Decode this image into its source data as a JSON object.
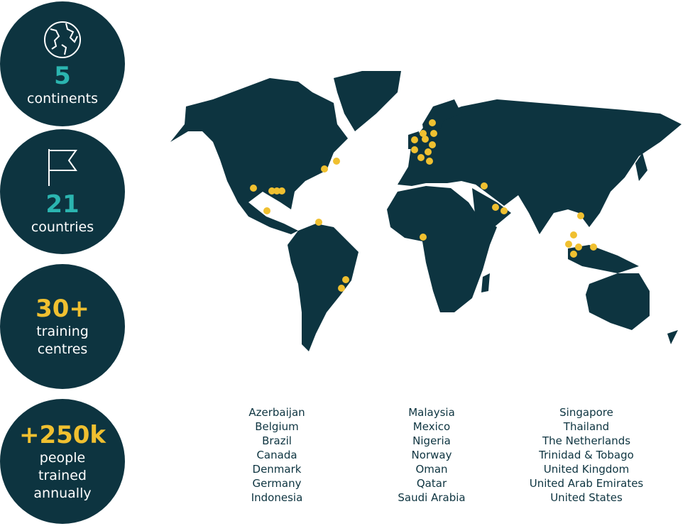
{
  "stats": [
    {
      "value": "5",
      "label": [
        "continents"
      ]
    },
    {
      "value": "21",
      "label": [
        "countries"
      ]
    },
    {
      "value": "30+",
      "label": [
        "training",
        "centres"
      ]
    },
    {
      "value": "+250k",
      "label": [
        "people",
        "trained",
        "annually"
      ]
    }
  ],
  "countries": [
    [
      "Azerbaijan",
      "Belgium",
      "Brazil",
      "Canada",
      "Denmark",
      "Germany",
      "Indonesia"
    ],
    [
      "Malaysia",
      "Mexico",
      "Nigeria",
      "Norway",
      "Oman",
      "Qatar",
      "Saudi Arabia"
    ],
    [
      "Singapore",
      "Thailand",
      "The Netherlands",
      "Trinidad & Tobago",
      "United Kingdom",
      "United Arab Emirates",
      "United States"
    ]
  ]
}
